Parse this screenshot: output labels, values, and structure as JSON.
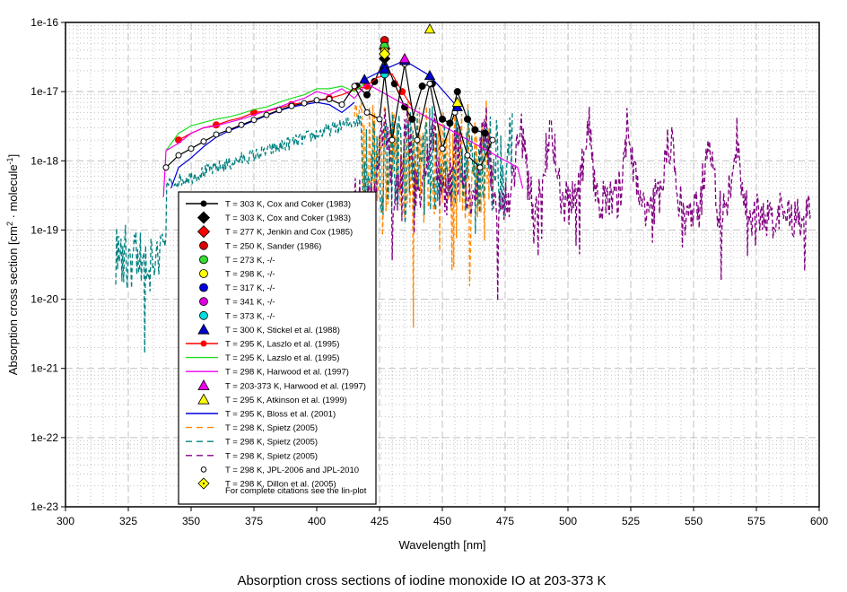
{
  "chart_data": {
    "type": "line",
    "title": "Absorption cross sections of iodine monoxide IO at 203-373 K",
    "xlabel": "Wavelength [nm]",
    "ylabel_parts": [
      "Absorption cross section [cm",
      "2",
      " · molecule",
      "-1",
      "]"
    ],
    "ylabel": "Absorption cross section [cm^2 · molecule^-1]",
    "xlim": [
      300,
      600
    ],
    "ylim": [
      1e-23,
      1e-16
    ],
    "yscale": "log",
    "grid": true,
    "x_ticks": [
      "300",
      "325",
      "350",
      "375",
      "400",
      "425",
      "450",
      "475",
      "500",
      "525",
      "550",
      "575",
      "600"
    ],
    "x_tick_values": [
      300,
      325,
      350,
      375,
      400,
      425,
      450,
      475,
      500,
      525,
      550,
      575,
      600
    ],
    "y_ticks": [
      "1e-16",
      "1e-17",
      "1e-18",
      "1e-19",
      "1e-20",
      "1e-21",
      "1e-22",
      "1e-23"
    ],
    "y_tick_values": [
      1e-16,
      1e-17,
      1e-18,
      1e-19,
      1e-20,
      1e-21,
      1e-22,
      1e-23
    ],
    "legend_position": "lower-left",
    "legend_note": "For complete citations see the lin-plot",
    "legend": [
      {
        "label": "T = 303 K, Cox and Coker (1983)",
        "color": "#000000",
        "style": "line-circle"
      },
      {
        "label": "T = 303 K, Cox and Coker (1983)",
        "color": "#000000",
        "style": "diamond"
      },
      {
        "label": "T = 277 K, Jenkin and Cox (1985)",
        "color": "#ff0000",
        "style": "diamond"
      },
      {
        "label": "T = 250 K, Sander (1986)",
        "color": "#dd0000",
        "style": "circle"
      },
      {
        "label": "T = 273 K,    -/-",
        "color": "#33dd33",
        "style": "circle"
      },
      {
        "label": "T = 298 K,    -/-",
        "color": "#ffff00",
        "style": "circle"
      },
      {
        "label": "T = 317 K,    -/-",
        "color": "#0000dd",
        "style": "circle"
      },
      {
        "label": "T = 341 K,    -/-",
        "color": "#dd00dd",
        "style": "circle"
      },
      {
        "label": "T = 373 K,    -/-",
        "color": "#00dddd",
        "style": "circle"
      },
      {
        "label": "T = 300 K, Stickel et al. (1988)",
        "color": "#0000cc",
        "style": "triangle"
      },
      {
        "label": "T = 295 K, Laszlo et al. (1995)",
        "color": "#ff0000",
        "style": "line-circle"
      },
      {
        "label": "T = 295 K, Lazslo et al. (1995)",
        "color": "#22dd22",
        "style": "line"
      },
      {
        "label": "T = 298 K, Harwood et al. (1997)",
        "color": "#ee00ee",
        "style": "line"
      },
      {
        "label": "T = 203-373 K, Harwood et al. (1997)",
        "color": "#ee00ee",
        "style": "triangle"
      },
      {
        "label": "T = 295 K, Atkinson et al. (1999)",
        "color": "#ffff00",
        "style": "triangle"
      },
      {
        "label": "T = 295 K, Bloss et al. (2001)",
        "color": "#0000dd",
        "style": "line"
      },
      {
        "label": "T = 298 K, Spietz (2005)",
        "color": "#ff8800",
        "style": "dash"
      },
      {
        "label": "T = 298 K, Spietz (2005)",
        "color": "#008080",
        "style": "dash"
      },
      {
        "label": "T = 298 K, Spietz (2005)",
        "color": "#800080",
        "style": "dash"
      },
      {
        "label": "T = 298 K, JPL-2006 and JPL-2010",
        "color": "#000000",
        "style": "small-open-circle"
      },
      {
        "label": "T = 298 K, Dillon et al. (2005)",
        "color": "#ffff00",
        "style": "diamond-small"
      }
    ],
    "series": [
      {
        "name": "Cox and Coker (1983) 303 K line",
        "color": "#000000",
        "x": [
          416,
          420,
          423,
          427,
          431,
          435,
          438,
          442,
          446,
          450,
          453,
          456,
          460,
          463,
          467
        ],
        "y": [
          1.2e-17,
          9e-18,
          1.4e-17,
          3e-17,
          1.3e-17,
          6e-18,
          4e-18,
          1.2e-17,
          1.3e-17,
          4e-18,
          3.5e-18,
          1e-17,
          4e-18,
          2.8e-18,
          2.5e-18
        ]
      },
      {
        "name": "Cox and Coker (1983) 303 K peak",
        "color": "#000000",
        "x": [
          427
        ],
        "y": [
          3e-17
        ]
      },
      {
        "name": "Jenkin and Cox (1985) 277 K",
        "color": "#ff0000",
        "x": [
          427
        ],
        "y": [
          4.2e-17
        ]
      },
      {
        "name": "Sander (1986) 250 K",
        "color": "#dd0000",
        "x": [
          427
        ],
        "y": [
          5.5e-17
        ]
      },
      {
        "name": "Sander 273 K",
        "color": "#33dd33",
        "x": [
          427
        ],
        "y": [
          4.5e-17
        ]
      },
      {
        "name": "Sander 298 K",
        "color": "#ffff00",
        "x": [
          427
        ],
        "y": [
          3.8e-17
        ]
      },
      {
        "name": "Sander 317 K",
        "color": "#0000dd",
        "x": [
          427
        ],
        "y": [
          2.2e-17
        ]
      },
      {
        "name": "Sander 341 K",
        "color": "#dd00dd",
        "x": [
          427
        ],
        "y": [
          2e-17
        ]
      },
      {
        "name": "Sander 373 K",
        "color": "#00dddd",
        "x": [
          427
        ],
        "y": [
          1.8e-17
        ]
      },
      {
        "name": "Stickel et al. (1988) 300 K",
        "color": "#0000cc",
        "x": [
          419,
          427,
          435,
          445,
          456
        ],
        "y": [
          1.5e-17,
          2.1e-17,
          2.8e-17,
          1.7e-17,
          6e-18
        ]
      },
      {
        "name": "Laszlo et al. (1995) 295 K",
        "color": "#ff0000",
        "x": [
          345,
          350,
          355,
          360,
          365,
          370,
          375,
          380,
          385,
          390,
          395,
          400,
          405,
          410,
          416,
          420,
          424,
          430,
          434,
          438
        ],
        "y": [
          2e-18,
          2.5e-18,
          3e-18,
          3.3e-18,
          3.8e-18,
          4.2e-18,
          5e-18,
          5.2e-18,
          5.8e-18,
          6.5e-18,
          7e-18,
          7.5e-18,
          8e-18,
          9e-18,
          1.1e-17,
          1.2e-17,
          1.6e-17,
          1.8e-17,
          1e-17,
          6e-18
        ]
      },
      {
        "name": "Lazslo et al. (1995) 295 K",
        "color": "#22dd22",
        "x": [
          340,
          345,
          350,
          355,
          360,
          365,
          370,
          375,
          380,
          385,
          390,
          395,
          400,
          405,
          410,
          415,
          420
        ],
        "y": [
          1.4e-18,
          2.5e-18,
          3.2e-18,
          3.6e-18,
          4e-18,
          4.3e-18,
          4.8e-18,
          5.5e-18,
          6e-18,
          7e-18,
          8e-18,
          9e-18,
          1.1e-17,
          1.1e-17,
          1.2e-17,
          1e-17,
          1.4e-17
        ]
      },
      {
        "name": "Harwood et al. (1997) 298 K",
        "color": "#ee00ee",
        "x": [
          339,
          340,
          345,
          350,
          355,
          360,
          365,
          370,
          375,
          380,
          385,
          390,
          395,
          400,
          405,
          410,
          415,
          420,
          480,
          482
        ],
        "y": [
          3e-19,
          1.4e-18,
          1.8e-18,
          2.5e-18,
          3e-18,
          3.2e-18,
          3.6e-18,
          4e-18,
          4.6e-18,
          5.3e-18,
          6e-18,
          7e-18,
          8e-18,
          1e-17,
          9e-18,
          1.1e-17,
          8e-18,
          1.3e-17,
          8e-19,
          4e-19
        ]
      },
      {
        "name": "Harwood et al. (1997) 203-373 K",
        "color": "#ee00ee",
        "x": [
          435
        ],
        "y": [
          3e-17
        ]
      },
      {
        "name": "Atkinson et al. (1999) 295 K",
        "color": "#ffff00",
        "x": [
          445,
          456
        ],
        "y": [
          8e-17,
          7e-18
        ]
      },
      {
        "name": "Bloss et al. (2001) 295 K",
        "color": "#0000dd",
        "x": [
          342,
          345,
          350,
          355,
          360,
          365,
          370,
          375,
          380,
          385,
          390,
          395,
          400,
          405,
          410,
          415
        ],
        "y": [
          4e-19,
          8e-19,
          1.1e-18,
          1.6e-18,
          2.2e-18,
          2.7e-18,
          3.2e-18,
          3.8e-18,
          4.5e-18,
          5.3e-18,
          6e-18,
          6.5e-18,
          7e-18,
          6.5e-18,
          5e-18,
          7e-18
        ]
      },
      {
        "name": "Spietz (2005) orange",
        "color": "#ff8800",
        "x_range": [
          415,
          470
        ],
        "y_range": [
          3e-22,
          3e-17
        ]
      },
      {
        "name": "Spietz (2005) teal",
        "color": "#008080",
        "x_range": [
          320,
          478
        ],
        "y_range": [
          4e-22,
          3e-17
        ]
      },
      {
        "name": "Spietz (2005) purple",
        "color": "#800080",
        "x_range": [
          415,
          597
        ],
        "y_range": [
          5e-21,
          1.5e-17
        ]
      },
      {
        "name": "JPL-2006 and JPL-2010",
        "color": "#000000",
        "x": [
          340,
          345,
          350,
          355,
          360,
          365,
          370,
          375,
          380,
          385,
          390,
          395,
          400,
          405,
          410,
          415,
          420,
          425,
          427,
          430,
          435,
          440,
          445,
          450,
          455,
          460,
          465,
          470
        ],
        "y": [
          8e-19,
          1.2e-18,
          1.5e-18,
          1.9e-18,
          2.4e-18,
          2.8e-18,
          3.3e-18,
          3.9e-18,
          4.6e-18,
          5.4e-18,
          6.2e-18,
          6.8e-18,
          7.5e-18,
          7.8e-18,
          6.5e-18,
          1.2e-17,
          5e-18,
          4e-18,
          1.8e-17,
          2e-18,
          2.5e-17,
          2e-18,
          1.3e-17,
          1.5e-18,
          5e-18,
          1.2e-18,
          8e-19,
          2e-18
        ]
      },
      {
        "name": "Dillon et al. (2005) 298 K",
        "color": "#ffff00",
        "x": [
          427
        ],
        "y": [
          3.5e-17
        ]
      }
    ]
  }
}
